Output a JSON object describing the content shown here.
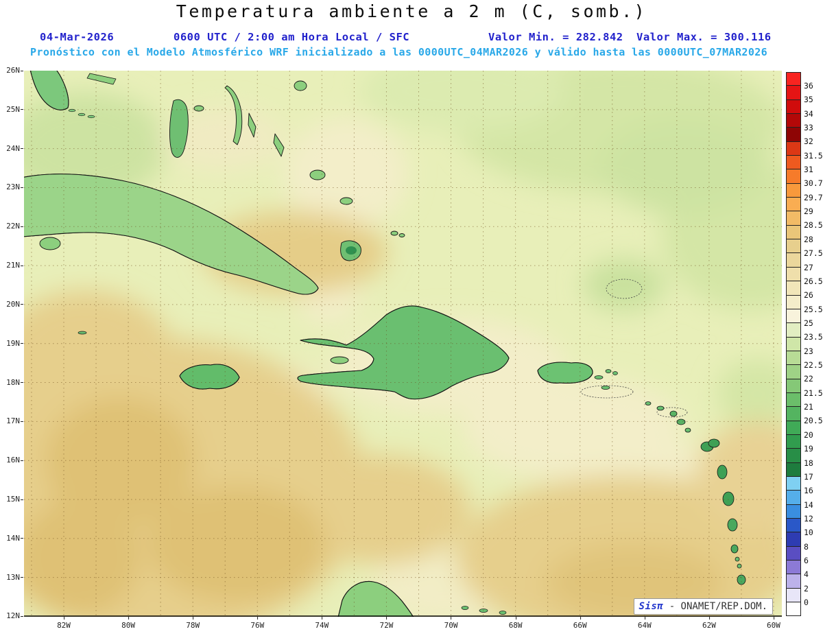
{
  "title": "Temperatura ambiente a 2 m (C, somb.)",
  "header": {
    "date": "04-Mar-2026",
    "time_line": "0600 UTC / 2:00 am Hora Local / SFC",
    "valor_min": "Valor Min. = 282.842",
    "valor_max": "Valor Max. = 300.116",
    "forecast": "Pronóstico con el Modelo Atmosférico WRF inicializado a las 0000UTC_04MAR2026 y válido hasta las  0000UTC_07MAR2026"
  },
  "watermark": {
    "model": "Sisπ",
    "org": "- ONAMET/REP.DOM."
  },
  "axes": {
    "lat": [
      "26N",
      "25N",
      "24N",
      "23N",
      "22N",
      "21N",
      "20N",
      "19N",
      "18N",
      "17N",
      "16N",
      "15N",
      "14N",
      "13N",
      "12N"
    ],
    "lon": [
      "82W",
      "80W",
      "78W",
      "76W",
      "74W",
      "72W",
      "70W",
      "68W",
      "66W",
      "64W",
      "62W",
      "60W"
    ]
  },
  "legend": {
    "boundary_labels": [
      "36",
      "35",
      "34",
      "33",
      "32",
      "31.5",
      "31",
      "30.7",
      "29.7",
      "29",
      "28.5",
      "28",
      "27.5",
      "27",
      "26.5",
      "26",
      "25.5",
      "25",
      "23.5",
      "23",
      "22.5",
      "22",
      "21.5",
      "21",
      "20.5",
      "20",
      "19",
      "18",
      "17",
      "16",
      "14",
      "12",
      "10",
      "8",
      "6",
      "4",
      "2",
      "0"
    ],
    "band_colors": [
      "#f82420",
      "#e51414",
      "#d00c0c",
      "#b30808",
      "#8e0505",
      "#dc3815",
      "#ee5a1f",
      "#f67b2a",
      "#f8993c",
      "#f9ad52",
      "#f2bb66",
      "#eac679",
      "#e7cf8d",
      "#ebd79c",
      "#efdfab",
      "#f1e6b9",
      "#f4edca",
      "#f8f3dc",
      "#e2eec2",
      "#cfe6a8",
      "#b8dc96",
      "#9fd286",
      "#85c877",
      "#6bbe6a",
      "#54b460",
      "#40aa57",
      "#319c4e",
      "#288e47",
      "#1e7c3e",
      "#7fd0f2",
      "#55aeea",
      "#3a8ee0",
      "#2a58c8",
      "#2e3cb2",
      "#5a4ec2",
      "#8c7ad6",
      "#bcb2ea",
      "#e8e6f8",
      "#ffffff"
    ]
  },
  "colors": {
    "header_blue": "#2222cc",
    "header_cyan": "#29a8e8",
    "watermark_blue": "#2236cc",
    "ocean_warm_tan": "#e7cf8d",
    "ocean_cream": "#f4edca",
    "ocean_pale_green": "#d4e6a6",
    "land_green": "#6bbe6a",
    "cold_spot_blue": "#2a58c8"
  }
}
